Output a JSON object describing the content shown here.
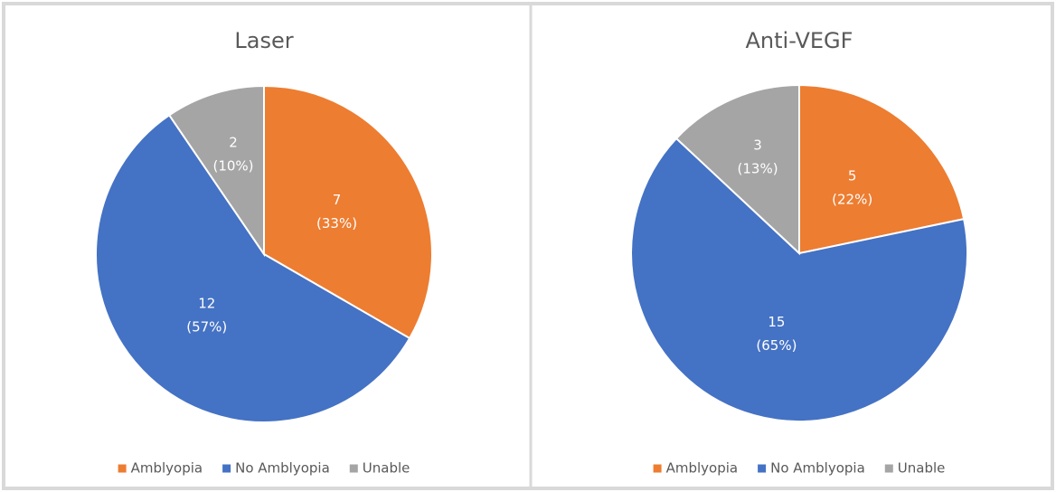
{
  "chart_data": [
    {
      "type": "pie",
      "title": "Laser",
      "categories": [
        "Amblyopia",
        "No Amblyopia",
        "Unable"
      ],
      "values": [
        7,
        12,
        2
      ],
      "value_labels": [
        [
          "7",
          "(33%)"
        ],
        [
          "12",
          "(57%)"
        ],
        [
          "2",
          "(10%)"
        ]
      ],
      "colors": [
        "#ed7d31",
        "#4472c4",
        "#a5a5a5"
      ],
      "legend": "bottom"
    },
    {
      "type": "pie",
      "title": "Anti-VEGF",
      "categories": [
        "Amblyopia",
        "No Amblyopia",
        "Unable"
      ],
      "values": [
        5,
        15,
        3
      ],
      "value_labels": [
        [
          "5",
          "(22%)"
        ],
        [
          "15",
          "(65%)"
        ],
        [
          "3",
          "(13%)"
        ]
      ],
      "colors": [
        "#ed7d31",
        "#4472c4",
        "#a5a5a5"
      ],
      "legend": "bottom"
    }
  ]
}
